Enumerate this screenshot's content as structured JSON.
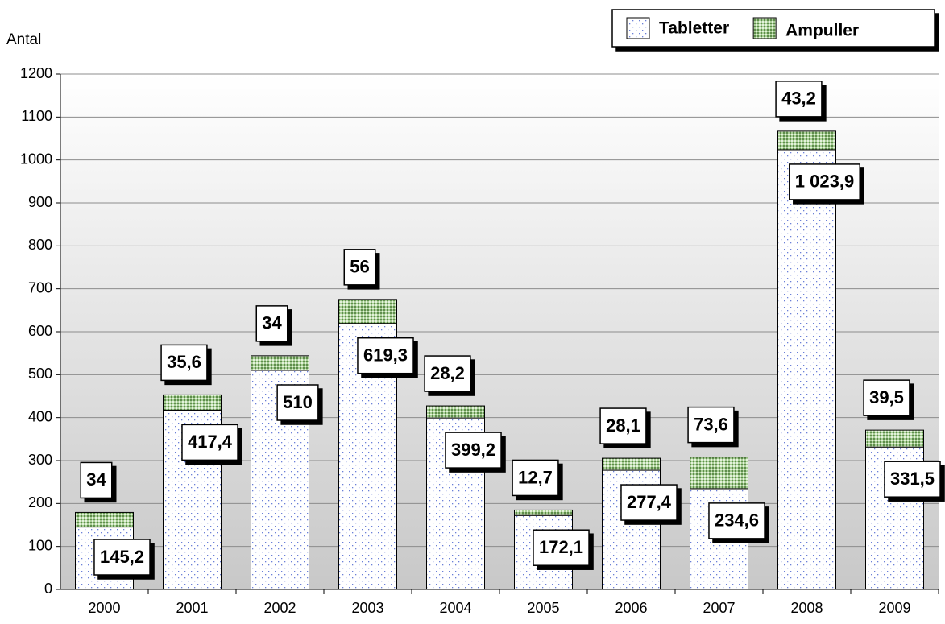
{
  "chart_data": {
    "type": "stacked_bar",
    "y_axis_label": "Antal",
    "categories": [
      "2000",
      "2001",
      "2002",
      "2003",
      "2004",
      "2005",
      "2006",
      "2007",
      "2008",
      "2009"
    ],
    "series": [
      {
        "name": "Tabletter",
        "color": "#ffffff",
        "values": [
          145.2,
          417.4,
          510,
          619.3,
          399.2,
          172.1,
          277.4,
          234.6,
          1023.9,
          331.5
        ],
        "value_labels": [
          "145,2",
          "417,4",
          "510",
          "619,3",
          "399,2",
          "172,1",
          "277,4",
          "234,6",
          "1 023,9",
          "331,5"
        ]
      },
      {
        "name": "Ampuller",
        "color": "#a9cf96",
        "values": [
          34,
          35.6,
          34,
          56,
          28.2,
          12.7,
          28.1,
          73.6,
          43.2,
          39.5
        ],
        "value_labels": [
          "34",
          "35,6",
          "34",
          "56",
          "28,2",
          "12,7",
          "28,1",
          "73,6",
          "43,2",
          "39,5"
        ]
      }
    ],
    "ylim": [
      0,
      1200
    ],
    "yticks": [
      0,
      100,
      200,
      300,
      400,
      500,
      600,
      700,
      800,
      900,
      1000,
      1100,
      1200
    ],
    "grid": true,
    "legend": "top-right"
  }
}
